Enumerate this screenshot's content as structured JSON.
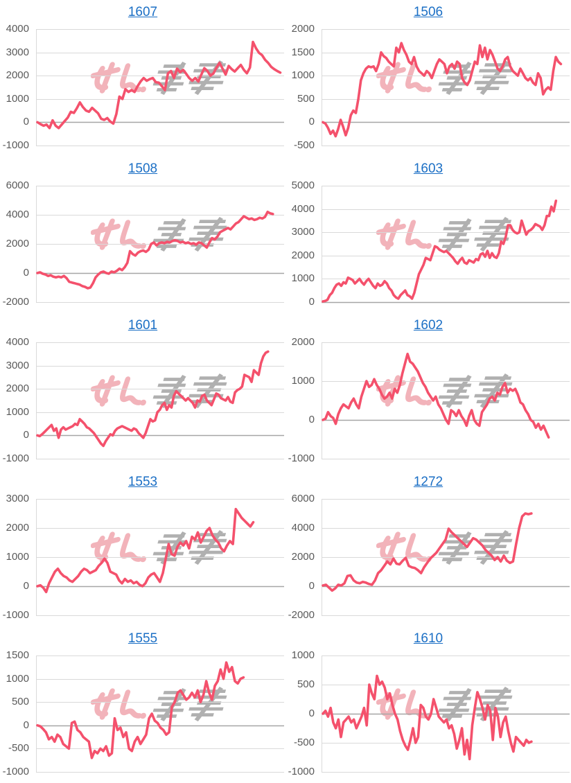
{
  "styles": {
    "background": "#ffffff",
    "line_color": "#f4516c",
    "title_color": "#1b6fc5",
    "grid_color": "#d9d9d9",
    "zero_line_color": "#a6a6a6",
    "tick_label_color": "#595959",
    "watermark_pink": "#f2b3ba",
    "watermark_gray": "#b0b0b0"
  },
  "watermark": {
    "name": "site-logo-watermark",
    "pink_part": "stylized-hiragana-glyphs",
    "gray_part": "speed-lined-glyphs"
  },
  "chart_data": [
    {
      "title": "1607",
      "type": "line",
      "grid": "on",
      "legend": "none",
      "ylim": [
        -1000,
        4000
      ],
      "ytick_step": 1000,
      "x_span": 0.99,
      "values": [
        0,
        -80,
        -150,
        -100,
        -250,
        80,
        -150,
        -250,
        -100,
        50,
        200,
        450,
        400,
        600,
        850,
        650,
        500,
        450,
        620,
        500,
        380,
        150,
        100,
        180,
        30,
        -60,
        350,
        1100,
        1000,
        1420,
        1300,
        1380,
        1300,
        1550,
        1750,
        1900,
        1780,
        1850,
        1900,
        1720,
        1700,
        1550,
        1380,
        2100,
        2200,
        1900,
        2300,
        2150,
        2250,
        2080,
        1900,
        1780,
        1900,
        1750,
        2050,
        2320,
        2200,
        2000,
        2100,
        2350,
        2550,
        2300,
        2050,
        2420,
        2280,
        2180,
        2320,
        2460,
        2250,
        2100,
        2350,
        3450,
        3180,
        2980,
        2880,
        2680,
        2550,
        2380,
        2280,
        2200,
        2130
      ]
    },
    {
      "title": "1506",
      "type": "line",
      "grid": "on",
      "legend": "none",
      "ylim": [
        -500,
        2000
      ],
      "ytick_step": 500,
      "x_span": 0.97,
      "values": [
        0,
        -30,
        -120,
        -250,
        -180,
        -300,
        -150,
        50,
        -100,
        -280,
        -120,
        150,
        250,
        200,
        500,
        900,
        1050,
        1150,
        1200,
        1180,
        1200,
        1100,
        1250,
        1500,
        1420,
        1380,
        1300,
        1250,
        1200,
        1600,
        1500,
        1700,
        1550,
        1450,
        1300,
        1250,
        1400,
        1200,
        1100,
        1050,
        1000,
        1100,
        1050,
        950,
        1100,
        1250,
        1350,
        1300,
        1250,
        1050,
        1200,
        1250,
        1150,
        1300,
        1250,
        950,
        850,
        800,
        900,
        1100,
        1300,
        1250,
        1650,
        1400,
        1600,
        1350,
        1550,
        1450,
        1300,
        1150,
        1100,
        1200,
        1350,
        1400,
        1200,
        1100,
        1050,
        1000,
        1150,
        1050,
        950,
        900,
        950,
        850,
        800,
        1050,
        950,
        600,
        700,
        750,
        700,
        1100,
        1400,
        1300,
        1250
      ]
    },
    {
      "title": "1508",
      "type": "line",
      "grid": "on",
      "legend": "none",
      "ylim": [
        -2000,
        6000
      ],
      "ytick_step": 2000,
      "x_span": 0.96,
      "values": [
        0,
        50,
        -50,
        -100,
        -200,
        -150,
        -250,
        -300,
        -250,
        -300,
        -200,
        -350,
        -600,
        -650,
        -700,
        -750,
        -800,
        -900,
        -950,
        -1050,
        -1000,
        -700,
        -300,
        -100,
        50,
        100,
        0,
        -50,
        100,
        50,
        150,
        300,
        200,
        400,
        700,
        1500,
        1300,
        1200,
        1400,
        1500,
        1550,
        1450,
        1600,
        2000,
        2100,
        1900,
        2050,
        2100,
        2050,
        2150,
        2100,
        2200,
        2250,
        2200,
        2100,
        2150,
        2050,
        2100,
        2000,
        2050,
        1950,
        2100,
        2050,
        1900,
        1750,
        2100,
        2400,
        2300,
        2500,
        2800,
        2900,
        3000,
        3100,
        3000,
        3200,
        3400,
        3500,
        3700,
        3900,
        3800,
        3700,
        3750,
        3650,
        3700,
        3800,
        3750,
        3850,
        4200,
        4100,
        4050
      ]
    },
    {
      "title": "1603",
      "type": "line",
      "grid": "on",
      "legend": "none",
      "ylim": [
        0,
        5000
      ],
      "ytick_step": 1000,
      "x_span": 0.95,
      "values": [
        30,
        50,
        100,
        300,
        400,
        600,
        750,
        800,
        700,
        850,
        800,
        1050,
        1000,
        950,
        800,
        900,
        1000,
        850,
        750,
        900,
        1000,
        850,
        700,
        600,
        800,
        700,
        750,
        900,
        800,
        600,
        500,
        300,
        200,
        150,
        300,
        400,
        500,
        300,
        250,
        150,
        400,
        800,
        1200,
        1400,
        1600,
        1900,
        1850,
        1800,
        2100,
        2400,
        2350,
        2250,
        2200,
        2150,
        2200,
        2100,
        2000,
        1900,
        1750,
        1650,
        1800,
        1900,
        1700,
        1650,
        1800,
        1750,
        1700,
        1850,
        1800,
        2050,
        2100,
        1950,
        2200,
        1900,
        2100,
        1950,
        1900,
        2100,
        2600,
        2500,
        2800,
        3300,
        3300,
        3100,
        3000,
        2950,
        3000,
        3500,
        3200,
        2900,
        3050,
        3100,
        3200,
        3350,
        3300,
        3250,
        3100,
        3300,
        3700,
        3700,
        4100,
        3900,
        4350
      ]
    },
    {
      "title": "1601",
      "type": "line",
      "grid": "on",
      "legend": "none",
      "ylim": [
        -1000,
        4000
      ],
      "ytick_step": 1000,
      "x_span": 0.94,
      "values": [
        0,
        -30,
        50,
        150,
        250,
        350,
        450,
        200,
        300,
        -100,
        250,
        350,
        250,
        300,
        350,
        400,
        500,
        450,
        700,
        600,
        500,
        350,
        300,
        200,
        100,
        -50,
        -200,
        -350,
        -450,
        -250,
        -100,
        50,
        0,
        200,
        300,
        350,
        400,
        350,
        300,
        250,
        200,
        300,
        250,
        100,
        0,
        -100,
        100,
        400,
        700,
        600,
        650,
        1000,
        1100,
        1300,
        1400,
        1100,
        1300,
        1200,
        1700,
        1900,
        1800,
        1700,
        1600,
        1500,
        1600,
        1500,
        1400,
        1200,
        1500,
        1450,
        1700,
        1750,
        1500,
        1400,
        1300,
        1550,
        1800,
        1750,
        1600,
        1550,
        1500,
        1650,
        1450,
        1400,
        1850,
        1950,
        2000,
        2100,
        2600,
        2550,
        2500,
        2300,
        2800,
        2700,
        2600,
        3100,
        3400,
        3550,
        3600
      ]
    },
    {
      "title": "1602",
      "type": "line",
      "grid": "on",
      "legend": "none",
      "ylim": [
        -1000,
        2000
      ],
      "ytick_step": 1000,
      "x_span": 0.92,
      "values": [
        0,
        30,
        200,
        100,
        50,
        -100,
        150,
        300,
        400,
        350,
        300,
        450,
        550,
        400,
        300,
        600,
        800,
        1000,
        850,
        900,
        1050,
        900,
        800,
        650,
        550,
        600,
        700,
        550,
        800,
        700,
        900,
        1200,
        1450,
        1700,
        1500,
        1450,
        1350,
        1250,
        1100,
        950,
        850,
        700,
        600,
        500,
        600,
        400,
        300,
        150,
        0,
        -100,
        250,
        200,
        100,
        250,
        100,
        0,
        -150,
        100,
        250,
        0,
        -100,
        -150,
        200,
        300,
        400,
        550,
        600,
        500,
        700,
        650,
        850,
        950,
        700,
        800,
        750,
        800,
        650,
        450,
        400,
        250,
        150,
        0,
        -50,
        -200,
        -100,
        -250,
        -150,
        -300,
        -450
      ]
    },
    {
      "title": "1553",
      "type": "line",
      "grid": "on",
      "legend": "none",
      "ylim": [
        -1000,
        3000
      ],
      "ytick_step": 1000,
      "x_span": 0.88,
      "values": [
        0,
        30,
        -50,
        -200,
        100,
        300,
        500,
        600,
        450,
        350,
        300,
        200,
        150,
        250,
        350,
        500,
        600,
        550,
        450,
        500,
        550,
        700,
        800,
        950,
        800,
        500,
        450,
        400,
        200,
        100,
        250,
        150,
        200,
        100,
        150,
        50,
        0,
        100,
        300,
        400,
        450,
        300,
        150,
        450,
        950,
        1450,
        1100,
        1050,
        1350,
        1500,
        1400,
        1550,
        1300,
        1700,
        1600,
        1850,
        1500,
        1700,
        1900,
        2000,
        1750,
        1600,
        1500,
        1300,
        1200,
        1400,
        1550,
        1450,
        2650,
        2500,
        2350,
        2250,
        2150,
        2050,
        2200
      ]
    },
    {
      "title": "1272",
      "type": "line",
      "grid": "on",
      "legend": "none",
      "ylim": [
        -2000,
        6000
      ],
      "ytick_step": 2000,
      "x_span": 0.85,
      "values": [
        50,
        100,
        -100,
        -300,
        -150,
        100,
        50,
        200,
        700,
        750,
        400,
        250,
        200,
        300,
        250,
        150,
        100,
        400,
        900,
        1100,
        1400,
        1700,
        1500,
        1900,
        1550,
        1500,
        1750,
        1950,
        1400,
        1300,
        1250,
        1100,
        900,
        1300,
        1600,
        1900,
        2100,
        2300,
        2600,
        2900,
        3200,
        3950,
        3700,
        3500,
        3300,
        3100,
        2900,
        2700,
        3000,
        3300,
        3200,
        3000,
        2800,
        2500,
        2300,
        2100,
        1800,
        2000,
        1700,
        2100,
        1750,
        1600,
        1700,
        2900,
        4000,
        4800,
        5000,
        4950,
        5000
      ]
    },
    {
      "title": "1555",
      "type": "line",
      "grid": "on",
      "legend": "none",
      "ylim": [
        -1000,
        1500
      ],
      "ytick_step": 500,
      "x_span": 0.84,
      "values": [
        0,
        -20,
        -80,
        -150,
        -300,
        -250,
        -350,
        -200,
        -250,
        -400,
        -450,
        -500,
        50,
        80,
        -100,
        -150,
        -250,
        -300,
        -350,
        -700,
        -550,
        -600,
        -500,
        -550,
        -450,
        -650,
        -600,
        150,
        -100,
        -50,
        -250,
        -150,
        -500,
        -550,
        -350,
        -250,
        -400,
        -300,
        -200,
        150,
        250,
        100,
        50,
        -50,
        -100,
        -200,
        -150,
        400,
        500,
        700,
        750,
        650,
        550,
        600,
        700,
        600,
        750,
        500,
        650,
        950,
        700,
        550,
        850,
        950,
        1200,
        1000,
        1350,
        1150,
        1250,
        950,
        900,
        1000,
        1030
      ]
    },
    {
      "title": "1610",
      "type": "line",
      "grid": "on",
      "legend": "none",
      "ylim": [
        -1000,
        1000
      ],
      "ytick_step": 500,
      "x_span": 0.85,
      "values": [
        0,
        50,
        -50,
        100,
        -150,
        -250,
        -100,
        -400,
        -150,
        -100,
        -50,
        -150,
        -100,
        -250,
        -150,
        -50,
        100,
        -200,
        500,
        350,
        250,
        650,
        500,
        550,
        450,
        250,
        350,
        150,
        0,
        -100,
        -300,
        -450,
        -550,
        -620,
        -450,
        -250,
        -500,
        -400,
        150,
        100,
        -50,
        -100,
        0,
        250,
        100,
        -50,
        -100,
        -150,
        -100,
        -250,
        -200,
        -350,
        -600,
        -450,
        -250,
        -700,
        -450,
        -780,
        -200,
        100,
        370,
        250,
        100,
        -100,
        150,
        50,
        -450,
        100,
        -50,
        -400,
        -150,
        -50,
        -300,
        -500,
        -650,
        -400,
        -450,
        -500,
        -550,
        -450,
        -500,
        -480
      ]
    }
  ]
}
